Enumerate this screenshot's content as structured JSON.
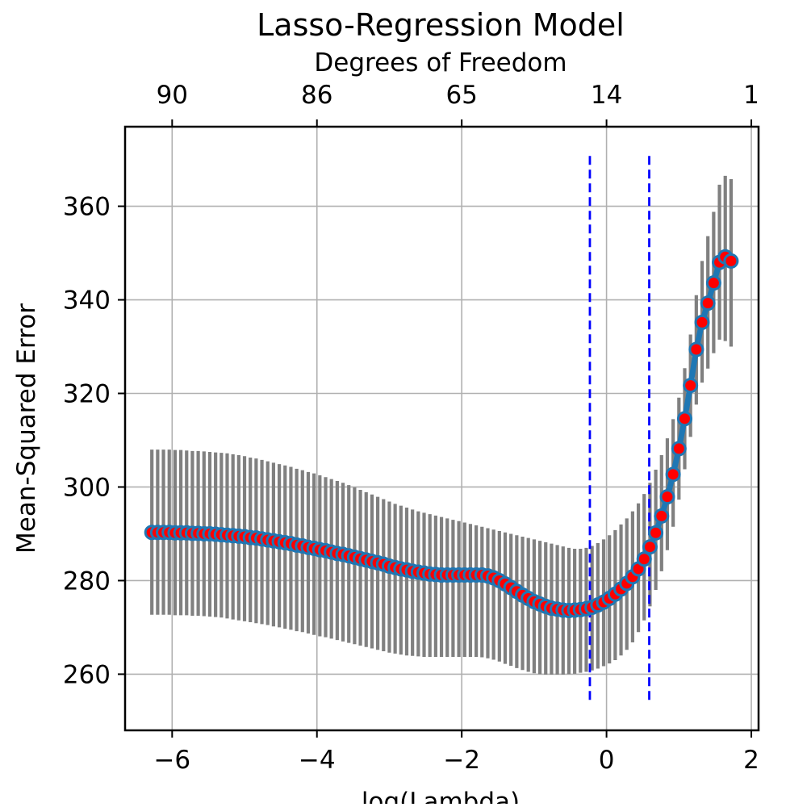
{
  "chart_data": {
    "type": "line",
    "title": "Lasso-Regression Model",
    "top_axis_label": "Degrees of Freedom",
    "xlabel": "log(Lambda)",
    "ylabel": "Mean-Squared Error",
    "xlim": [
      -6.65,
      2.1
    ],
    "ylim": [
      248,
      377
    ],
    "grid": true,
    "x_ticks": [
      -6,
      -4,
      -2,
      0,
      2
    ],
    "x_tick_labels": [
      "−6",
      "−4",
      "−2",
      "0",
      "2"
    ],
    "y_ticks": [
      260,
      280,
      300,
      320,
      340,
      360
    ],
    "y_tick_labels": [
      "260",
      "280",
      "300",
      "320",
      "340",
      "360"
    ],
    "top_ticks": [
      -6,
      -4,
      -2,
      0,
      2
    ],
    "top_tick_labels": [
      "90",
      "86",
      "65",
      "14",
      "1"
    ],
    "vlines": [
      {
        "x": -0.23,
        "ymin": 254.5,
        "ymax": 371
      },
      {
        "x": 0.59,
        "ymin": 254.5,
        "ymax": 371
      }
    ],
    "colors": {
      "line": "#1f77b4",
      "marker_face": "#ff0000",
      "error_bar": "#808080",
      "vline": "#0000ff",
      "grid": "#b0b0b0"
    },
    "series": [
      {
        "x": [
          -6.28,
          -6.2,
          -6.12,
          -6.04,
          -5.96,
          -5.88,
          -5.8,
          -5.72,
          -5.64,
          -5.56,
          -5.48,
          -5.4,
          -5.32,
          -5.24,
          -5.16,
          -5.08,
          -5.0,
          -4.92,
          -4.84,
          -4.76,
          -4.68,
          -4.6,
          -4.52,
          -4.44,
          -4.36,
          -4.28,
          -4.2,
          -4.12,
          -4.04,
          -3.96,
          -3.88,
          -3.8,
          -3.72,
          -3.64,
          -3.56,
          -3.48,
          -3.4,
          -3.32,
          -3.24,
          -3.16,
          -3.08,
          -3.0,
          -2.92,
          -2.84,
          -2.76,
          -2.68,
          -2.6,
          -2.52,
          -2.44,
          -2.36,
          -2.28,
          -2.2,
          -2.12,
          -2.04,
          -1.96,
          -1.88,
          -1.8,
          -1.72,
          -1.64,
          -1.56,
          -1.48,
          -1.4,
          -1.32,
          -1.24,
          -1.16,
          -1.08,
          -1.0,
          -0.92,
          -0.84,
          -0.76,
          -0.68,
          -0.6,
          -0.52,
          -0.44,
          -0.36,
          -0.28,
          -0.2,
          -0.12,
          -0.04,
          0.04,
          0.12,
          0.2,
          0.28,
          0.36,
          0.44,
          0.52,
          0.6,
          0.68,
          0.76,
          0.84,
          0.92,
          1.0,
          1.08,
          1.16,
          1.24,
          1.32,
          1.4,
          1.48,
          1.56,
          1.64,
          1.72
        ],
        "y": [
          290.3,
          290.3,
          290.3,
          290.3,
          290.2,
          290.2,
          290.2,
          290.1,
          290.1,
          290.0,
          290.0,
          289.9,
          289.8,
          289.7,
          289.6,
          289.5,
          289.4,
          289.2,
          289.1,
          288.9,
          288.7,
          288.5,
          288.3,
          288.1,
          287.9,
          287.6,
          287.4,
          287.1,
          286.9,
          286.6,
          286.4,
          286.1,
          285.8,
          285.6,
          285.3,
          285.0,
          284.7,
          284.4,
          284.1,
          283.8,
          283.5,
          283.1,
          282.8,
          282.5,
          282.3,
          282.0,
          281.8,
          281.6,
          281.4,
          281.3,
          281.2,
          281.2,
          281.2,
          281.2,
          281.2,
          281.2,
          281.2,
          281.2,
          281.0,
          280.6,
          280.0,
          279.3,
          278.5,
          277.7,
          276.9,
          276.2,
          275.5,
          275.0,
          274.5,
          274.1,
          273.9,
          273.7,
          273.6,
          273.7,
          273.8,
          274.0,
          274.3,
          274.8,
          275.4,
          276.2,
          277.1,
          278.2,
          279.4,
          280.8,
          282.5,
          284.6,
          287.2,
          290.2,
          293.8,
          297.9,
          302.7,
          308.2,
          314.6,
          321.7,
          329.4,
          335.2,
          339.3,
          343.6,
          348.0,
          349.2,
          348.3
        ],
        "yerr_lo": [
          272.7,
          272.7,
          272.7,
          272.7,
          272.6,
          272.6,
          272.6,
          272.5,
          272.5,
          272.4,
          272.3,
          272.2,
          272.1,
          271.9,
          271.7,
          271.5,
          271.3,
          271.1,
          270.9,
          270.7,
          270.5,
          270.2,
          270.0,
          269.7,
          269.5,
          269.2,
          269.0,
          268.7,
          268.4,
          268.1,
          267.9,
          267.6,
          267.3,
          267.0,
          266.7,
          266.4,
          266.1,
          265.8,
          265.5,
          265.2,
          264.9,
          264.6,
          264.4,
          264.2,
          264.0,
          263.9,
          263.8,
          263.7,
          263.7,
          263.7,
          263.7,
          263.7,
          263.7,
          263.7,
          263.7,
          263.7,
          263.7,
          263.6,
          263.4,
          263.1,
          262.7,
          262.2,
          261.8,
          261.3,
          260.9,
          260.5,
          260.2,
          260.0,
          259.9,
          259.9,
          259.9,
          259.9,
          260.0,
          260.1,
          260.3,
          260.5,
          260.8,
          261.2,
          261.7,
          262.3,
          263.0,
          264.0,
          265.2,
          266.8,
          269.0,
          271.5,
          274.5,
          278.0,
          282.0,
          286.5,
          291.5,
          297.3,
          303.8,
          310.7,
          317.6,
          322.3,
          325.3,
          328.6,
          331.5,
          331.2,
          330.0
        ],
        "yerr_hi": [
          308.0,
          308.0,
          308.0,
          308.0,
          307.9,
          307.9,
          307.8,
          307.7,
          307.7,
          307.6,
          307.5,
          307.4,
          307.3,
          307.2,
          307.0,
          306.8,
          306.6,
          306.3,
          306.1,
          305.8,
          305.5,
          305.2,
          304.9,
          304.6,
          304.3,
          303.9,
          303.6,
          303.2,
          302.9,
          302.5,
          302.1,
          301.7,
          301.3,
          300.9,
          300.4,
          299.9,
          299.4,
          298.9,
          298.4,
          297.9,
          297.4,
          296.9,
          296.4,
          296.0,
          295.6,
          295.2,
          294.8,
          294.5,
          294.2,
          293.9,
          293.6,
          293.3,
          293.0,
          292.7,
          292.4,
          292.1,
          291.8,
          291.5,
          291.2,
          290.9,
          290.6,
          290.3,
          290.0,
          289.7,
          289.4,
          289.1,
          288.8,
          288.5,
          288.2,
          287.9,
          287.6,
          287.3,
          287.0,
          286.8,
          286.8,
          287.0,
          287.4,
          288.0,
          288.8,
          289.7,
          290.8,
          292.0,
          293.3,
          294.8,
          296.5,
          298.5,
          300.9,
          303.7,
          306.8,
          310.4,
          314.5,
          319.1,
          325.4,
          332.6,
          341.0,
          348.3,
          353.6,
          358.8,
          364.6,
          366.5,
          365.8
        ]
      }
    ]
  }
}
